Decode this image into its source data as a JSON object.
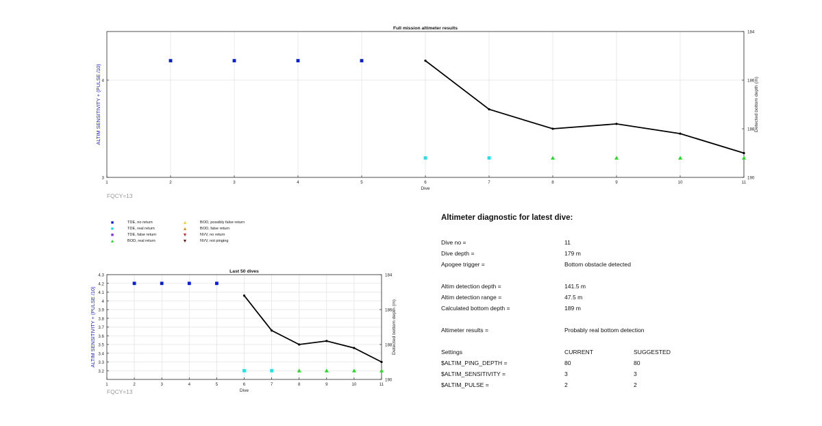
{
  "chart_data": [
    {
      "type": "scatter",
      "title": "Full mission altimeter results",
      "xlabel": "Dive",
      "ylabel": "ALTIM SENSITIVITY + (PULSE /10)",
      "y2label": "Detected bottom depth (m)",
      "xlim": [
        1,
        11
      ],
      "ylim": [
        3,
        4.5
      ],
      "y2lim": [
        184,
        190
      ],
      "y2_reversed": true,
      "xticks": [
        "1",
        "2",
        "3",
        "4",
        "5",
        "6",
        "7",
        "8",
        "9",
        "10",
        "11"
      ],
      "yticks": [
        "3",
        "4"
      ],
      "y2ticks": [
        "184",
        "186",
        "188",
        "190"
      ],
      "grid": true,
      "annotation": "FQCY=13",
      "series": [
        {
          "kind": "markers",
          "marker": "square",
          "color": "#0a1fd0",
          "x": [
            2,
            3,
            4,
            5
          ],
          "y": [
            4.2,
            4.2,
            4.2,
            4.2
          ]
        },
        {
          "kind": "markers",
          "marker": "square",
          "color": "#22e0e8",
          "x": [
            6,
            7
          ],
          "y": [
            3.2,
            3.2
          ]
        },
        {
          "kind": "markers",
          "marker": "triangle",
          "color": "#22dd22",
          "x": [
            8,
            9,
            10,
            11
          ],
          "y": [
            3.2,
            3.2,
            3.2,
            3.2
          ]
        },
        {
          "kind": "line",
          "axis": "right",
          "color": "#000000",
          "x": [
            6,
            7,
            8,
            9,
            10,
            11
          ],
          "y": [
            185.2,
            187.2,
            188.0,
            187.8,
            188.2,
            189.0
          ]
        }
      ]
    },
    {
      "type": "scatter",
      "title": "Last 50 dives",
      "xlabel": "Dive",
      "ylabel": "ALTIM SENSITIVITY + (PULSE /10)",
      "y2label": "Detected bottom depth (m)",
      "xlim": [
        1,
        11
      ],
      "ylim": [
        3.1,
        4.3
      ],
      "y2lim": [
        184,
        190
      ],
      "y2_reversed": true,
      "xticks": [
        "1",
        "2",
        "3",
        "4",
        "5",
        "6",
        "7",
        "8",
        "9",
        "10",
        "11"
      ],
      "yticks": [
        "3.2",
        "3.3",
        "3.4",
        "3.5",
        "3.6",
        "3.7",
        "3.8",
        "3.9",
        "4",
        "4.1",
        "4.2",
        "4.3"
      ],
      "y2ticks": [
        "184",
        "186",
        "188",
        "190"
      ],
      "grid": true,
      "annotation": "FQCY=13",
      "series": [
        {
          "kind": "markers",
          "marker": "square",
          "color": "#0a1fd0",
          "x": [
            2,
            3,
            4,
            5
          ],
          "y": [
            4.2,
            4.2,
            4.2,
            4.2
          ]
        },
        {
          "kind": "markers",
          "marker": "square",
          "color": "#22e0e8",
          "x": [
            6,
            7
          ],
          "y": [
            3.2,
            3.2
          ]
        },
        {
          "kind": "markers",
          "marker": "triangle",
          "color": "#22dd22",
          "x": [
            8,
            9,
            10,
            11
          ],
          "y": [
            3.2,
            3.2,
            3.2,
            3.2
          ]
        },
        {
          "kind": "line",
          "axis": "right",
          "color": "#000000",
          "x": [
            6,
            7,
            8,
            9,
            10,
            11
          ],
          "y": [
            185.2,
            187.2,
            188.0,
            187.8,
            188.2,
            189.0
          ]
        }
      ]
    }
  ],
  "legend": [
    {
      "label": "TDE, no return",
      "marker": "square",
      "color": "#0a1fd0"
    },
    {
      "label": "TDE, real return",
      "marker": "square",
      "color": "#22e0e8"
    },
    {
      "label": "TDE, false return",
      "marker": "square",
      "color": "#8a2be2"
    },
    {
      "label": "BOD, real return",
      "marker": "triangle",
      "color": "#22dd22"
    },
    {
      "label": "BOD, possibly false return",
      "marker": "triangle",
      "color": "#f5d000"
    },
    {
      "label": "BOD, false return",
      "marker": "triangle",
      "color": "#f08a00"
    },
    {
      "label": "NVV, no return",
      "marker": "triangle-down",
      "color": "#e02020"
    },
    {
      "label": "NVV, not pinging",
      "marker": "triangle-down",
      "color": "#7a1010"
    }
  ],
  "diagnostic": {
    "title": "Altimeter diagnostic for latest dive:",
    "dive_no_label": "Dive no =",
    "dive_no": "11",
    "dive_depth_label": "Dive depth =",
    "dive_depth": "179 m",
    "apogee_label": "Apogee trigger =",
    "apogee": "Bottom obstacle detected",
    "det_depth_label": "Altim detection depth =",
    "det_depth": "141.5 m",
    "det_range_label": "Altim detection range =",
    "det_range": "47.5 m",
    "calc_bottom_label": "Calculated bottom depth =",
    "calc_bottom": "189 m",
    "results_label": "Altimeter results =",
    "results": "Probably real bottom detection",
    "settings_label": "Settings",
    "current_label": "CURRENT",
    "suggested_label": "SUGGESTED",
    "ping_depth_label": "$ALTIM_PING_DEPTH =",
    "ping_depth_current": "80",
    "ping_depth_suggested": "80",
    "sensitivity_label": "$ALTIM_SENSITIVITY =",
    "sensitivity_current": "3",
    "sensitivity_suggested": "3",
    "pulse_label": "$ALTIM_PULSE =",
    "pulse_current": "2",
    "pulse_suggested": "2"
  }
}
